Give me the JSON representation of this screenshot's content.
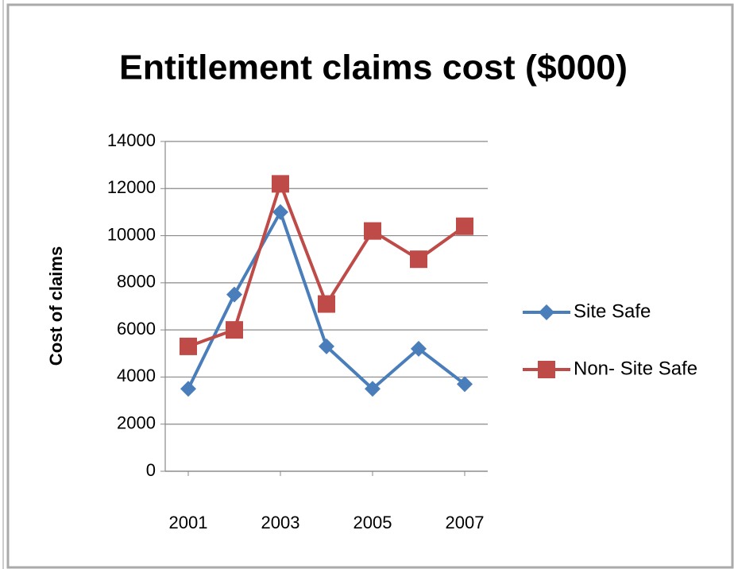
{
  "chart_data": {
    "type": "line",
    "title": "Entitlement claims cost ($000)",
    "y_label": "Cost of claims",
    "x": [
      2001,
      2002,
      2003,
      2004,
      2005,
      2006,
      2007
    ],
    "series": [
      {
        "name": "Site Safe",
        "color": "#4a7ebb",
        "marker": "diamond",
        "values": [
          3500,
          7500,
          11000,
          5300,
          3500,
          5200,
          3700
        ]
      },
      {
        "name": "Non- Site Safe",
        "color": "#be4b48",
        "marker": "square",
        "values": [
          5300,
          6000,
          12200,
          7100,
          10200,
          9000,
          10400
        ]
      }
    ],
    "xlim": [
      2000.5,
      2007.5
    ],
    "xticks": [
      2001,
      2003,
      2005,
      2007
    ],
    "ylim": [
      0,
      14000
    ],
    "yticks": [
      0,
      2000,
      4000,
      6000,
      8000,
      10000,
      12000,
      14000
    ],
    "grid": true,
    "legend": "right"
  }
}
